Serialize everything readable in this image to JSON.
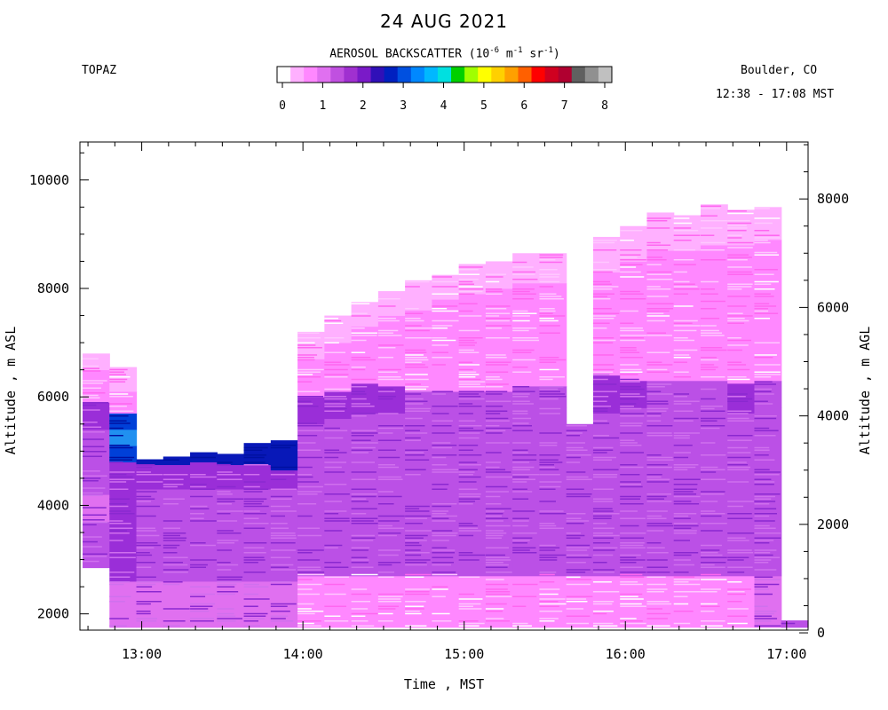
{
  "chart_data": {
    "type": "heatmap",
    "title": "24 AUG 2021",
    "left_label": "TOPAZ",
    "location": "Boulder, CO",
    "time_range": "12:38 - 17:08 MST",
    "colorbar": {
      "title_prefix": "AEROSOL BACKSCATTER (10",
      "title_exp1": "-6",
      "title_mid1": " m",
      "title_exp2": "-1",
      "title_mid2": " sr",
      "title_exp3": "-1",
      "title_suffix": ")",
      "ticks": [
        0,
        1,
        2,
        3,
        4,
        5,
        6,
        7,
        8
      ],
      "range": [
        0,
        8
      ],
      "colors": [
        "#ffffff",
        "#ffb0ff",
        "#ff88ff",
        "#e070f0",
        "#c050e0",
        "#a030d0",
        "#7a1ac8",
        "#3010b8",
        "#0020c0",
        "#0050e0",
        "#0088ff",
        "#00b8ff",
        "#00e0e0",
        "#00d000",
        "#a0ff00",
        "#ffff00",
        "#ffd000",
        "#ffa000",
        "#ff6000",
        "#ff0000",
        "#d00020",
        "#b00030",
        "#606060",
        "#909090",
        "#c0c0c0"
      ]
    },
    "xlabel": "Time , MST",
    "ylabel_left": "Altitude , m ASL",
    "ylabel_right": "Altitude , m AGL",
    "x_ticks": [
      "13:00",
      "14:00",
      "15:00",
      "16:00",
      "17:00"
    ],
    "x_tick_hours": [
      13,
      14,
      15,
      16,
      17
    ],
    "xlim_hours": [
      12.6167,
      17.1333
    ],
    "ylim_asl": [
      1700,
      10700
    ],
    "y_ticks_asl": [
      2000,
      4000,
      6000,
      8000,
      10000
    ],
    "y_ticks_agl": [
      0,
      2000,
      4000,
      6000,
      8000
    ],
    "agl_offset_m": 1650,
    "profiles": [
      {
        "start": 12.6333,
        "end": 12.8,
        "bottom": 2850,
        "top": 6800,
        "layers": [
          [
            2850,
            3700,
            4
          ],
          [
            3700,
            4200,
            3
          ],
          [
            4200,
            5400,
            4
          ],
          [
            5400,
            5900,
            5
          ],
          [
            5900,
            6500,
            2
          ],
          [
            6500,
            6800,
            1
          ]
        ]
      },
      {
        "start": 12.8,
        "end": 12.9667,
        "bottom": 1750,
        "top": 6550,
        "layers": [
          [
            1750,
            2600,
            3
          ],
          [
            2600,
            4800,
            5
          ],
          [
            4800,
            5100,
            8
          ],
          [
            5100,
            5400,
            10
          ],
          [
            5400,
            5700,
            8
          ],
          [
            5700,
            6100,
            2
          ],
          [
            6100,
            6550,
            1
          ]
        ]
      },
      {
        "start": 12.9667,
        "end": 13.1333,
        "bottom": 1750,
        "top": 4850,
        "layers": [
          [
            1750,
            2600,
            3
          ],
          [
            2600,
            4300,
            4
          ],
          [
            4300,
            4750,
            5
          ],
          [
            4750,
            4850,
            7
          ]
        ]
      },
      {
        "start": 13.1333,
        "end": 13.3,
        "bottom": 1750,
        "top": 4900,
        "layers": [
          [
            1750,
            2600,
            3
          ],
          [
            2600,
            4300,
            4
          ],
          [
            4300,
            4750,
            5
          ],
          [
            4750,
            4900,
            7
          ]
        ]
      },
      {
        "start": 13.3,
        "end": 13.4667,
        "bottom": 1750,
        "top": 4980,
        "layers": [
          [
            1750,
            2600,
            3
          ],
          [
            2600,
            4300,
            4
          ],
          [
            4300,
            4800,
            5
          ],
          [
            4800,
            4980,
            7
          ]
        ]
      },
      {
        "start": 13.4667,
        "end": 13.6333,
        "bottom": 1750,
        "top": 4950,
        "layers": [
          [
            1750,
            2600,
            3
          ],
          [
            2600,
            4300,
            4
          ],
          [
            4300,
            4750,
            5
          ],
          [
            4750,
            4950,
            7
          ]
        ]
      },
      {
        "start": 13.6333,
        "end": 13.8,
        "bottom": 1750,
        "top": 5150,
        "layers": [
          [
            1750,
            2600,
            3
          ],
          [
            2600,
            4300,
            4
          ],
          [
            4300,
            4750,
            5
          ],
          [
            4750,
            5150,
            7
          ]
        ]
      },
      {
        "start": 13.8,
        "end": 13.9667,
        "bottom": 1750,
        "top": 5200,
        "layers": [
          [
            1750,
            2600,
            3
          ],
          [
            2600,
            4300,
            4
          ],
          [
            4300,
            4650,
            5
          ],
          [
            4650,
            5200,
            7
          ]
        ]
      },
      {
        "start": 13.9667,
        "end": 14.1333,
        "bottom": 1750,
        "top": 7200,
        "layers": [
          [
            1750,
            2700,
            2
          ],
          [
            2700,
            5500,
            4
          ],
          [
            5500,
            6000,
            5
          ],
          [
            6000,
            6700,
            2
          ],
          [
            6700,
            7200,
            1
          ]
        ]
      },
      {
        "start": 14.1333,
        "end": 14.3,
        "bottom": 1750,
        "top": 7500,
        "layers": [
          [
            1750,
            2700,
            2
          ],
          [
            2700,
            5600,
            4
          ],
          [
            5600,
            6100,
            5
          ],
          [
            6100,
            7000,
            2
          ],
          [
            7000,
            7500,
            1
          ]
        ]
      },
      {
        "start": 14.3,
        "end": 14.4667,
        "bottom": 1750,
        "top": 7750,
        "layers": [
          [
            1750,
            2700,
            2
          ],
          [
            2700,
            5700,
            4
          ],
          [
            5700,
            6250,
            5
          ],
          [
            6250,
            7300,
            2
          ],
          [
            7300,
            7750,
            1
          ]
        ]
      },
      {
        "start": 14.4667,
        "end": 14.6333,
        "bottom": 1750,
        "top": 7950,
        "layers": [
          [
            1750,
            2700,
            2
          ],
          [
            2700,
            5700,
            4
          ],
          [
            5700,
            6200,
            5
          ],
          [
            6200,
            7500,
            2
          ],
          [
            7500,
            7950,
            1
          ]
        ]
      },
      {
        "start": 14.6333,
        "end": 14.8,
        "bottom": 1750,
        "top": 8150,
        "layers": [
          [
            1750,
            2700,
            2
          ],
          [
            2700,
            5700,
            4
          ],
          [
            5700,
            6100,
            4
          ],
          [
            6100,
            7600,
            2
          ],
          [
            7600,
            8150,
            1
          ]
        ]
      },
      {
        "start": 14.8,
        "end": 14.9667,
        "bottom": 1750,
        "top": 8250,
        "layers": [
          [
            1750,
            2700,
            2
          ],
          [
            2700,
            5600,
            4
          ],
          [
            5600,
            6100,
            4
          ],
          [
            6100,
            7800,
            2
          ],
          [
            7800,
            8250,
            1
          ]
        ]
      },
      {
        "start": 14.9667,
        "end": 15.1333,
        "bottom": 1750,
        "top": 8450,
        "layers": [
          [
            1750,
            2700,
            2
          ],
          [
            2700,
            5700,
            4
          ],
          [
            5700,
            6100,
            4
          ],
          [
            6100,
            7900,
            2
          ],
          [
            7900,
            8450,
            1
          ]
        ]
      },
      {
        "start": 15.1333,
        "end": 15.3,
        "bottom": 1750,
        "top": 8500,
        "layers": [
          [
            1750,
            2700,
            2
          ],
          [
            2700,
            5700,
            4
          ],
          [
            5700,
            6100,
            4
          ],
          [
            6100,
            8000,
            2
          ],
          [
            8000,
            8500,
            1
          ]
        ]
      },
      {
        "start": 15.3,
        "end": 15.4667,
        "bottom": 1750,
        "top": 8650,
        "layers": [
          [
            1750,
            2700,
            2
          ],
          [
            2700,
            5800,
            4
          ],
          [
            5800,
            6200,
            4
          ],
          [
            6200,
            8100,
            2
          ],
          [
            8100,
            8650,
            1
          ]
        ]
      },
      {
        "start": 15.4667,
        "end": 15.6333,
        "bottom": 1750,
        "top": 8650,
        "layers": [
          [
            1750,
            2700,
            2
          ],
          [
            2700,
            5800,
            4
          ],
          [
            5800,
            6200,
            4
          ],
          [
            6200,
            8100,
            2
          ],
          [
            8100,
            8650,
            1
          ]
        ]
      },
      {
        "start": 15.6333,
        "end": 15.8,
        "bottom": 1750,
        "top": 5500,
        "layers": [
          [
            1750,
            2700,
            2
          ],
          [
            2700,
            5500,
            4
          ]
        ]
      },
      {
        "start": 15.8,
        "end": 15.9667,
        "bottom": 1750,
        "top": 8950,
        "layers": [
          [
            1750,
            2700,
            2
          ],
          [
            2700,
            5700,
            4
          ],
          [
            5700,
            6400,
            5
          ],
          [
            6400,
            8300,
            2
          ],
          [
            8300,
            8950,
            1
          ]
        ]
      },
      {
        "start": 15.9667,
        "end": 16.1333,
        "bottom": 1750,
        "top": 9150,
        "layers": [
          [
            1750,
            2700,
            2
          ],
          [
            2700,
            5800,
            4
          ],
          [
            5800,
            6300,
            5
          ],
          [
            6300,
            8500,
            2
          ],
          [
            8500,
            9150,
            1
          ]
        ]
      },
      {
        "start": 16.1333,
        "end": 16.3,
        "bottom": 1750,
        "top": 9400,
        "layers": [
          [
            1750,
            2700,
            2
          ],
          [
            2700,
            5800,
            4
          ],
          [
            5800,
            6300,
            4
          ],
          [
            6300,
            8700,
            2
          ],
          [
            8700,
            9400,
            1
          ]
        ]
      },
      {
        "start": 16.3,
        "end": 16.4667,
        "bottom": 1750,
        "top": 9350,
        "layers": [
          [
            1750,
            2700,
            2
          ],
          [
            2700,
            5800,
            4
          ],
          [
            5800,
            6300,
            4
          ],
          [
            6300,
            8700,
            2
          ],
          [
            8700,
            9350,
            1
          ]
        ]
      },
      {
        "start": 16.4667,
        "end": 16.6333,
        "bottom": 1750,
        "top": 9550,
        "layers": [
          [
            1750,
            2700,
            2
          ],
          [
            2700,
            5800,
            4
          ],
          [
            5800,
            6300,
            4
          ],
          [
            6300,
            8800,
            2
          ],
          [
            8800,
            9550,
            1
          ]
        ]
      },
      {
        "start": 16.6333,
        "end": 16.8,
        "bottom": 1750,
        "top": 9450,
        "layers": [
          [
            1750,
            2700,
            2
          ],
          [
            2700,
            5700,
            4
          ],
          [
            5700,
            6250,
            5
          ],
          [
            6250,
            8800,
            2
          ],
          [
            8800,
            9450,
            1
          ]
        ]
      },
      {
        "start": 16.8,
        "end": 16.9667,
        "bottom": 1750,
        "top": 9500,
        "layers": [
          [
            1750,
            2700,
            3
          ],
          [
            2700,
            5800,
            4
          ],
          [
            5800,
            6300,
            4
          ],
          [
            6300,
            8900,
            2
          ],
          [
            8900,
            9500,
            1
          ]
        ]
      },
      {
        "start": 16.9667,
        "end": 17.1333,
        "bottom": 1750,
        "top": 1880,
        "layers": [
          [
            1750,
            1880,
            4
          ]
        ]
      }
    ]
  }
}
